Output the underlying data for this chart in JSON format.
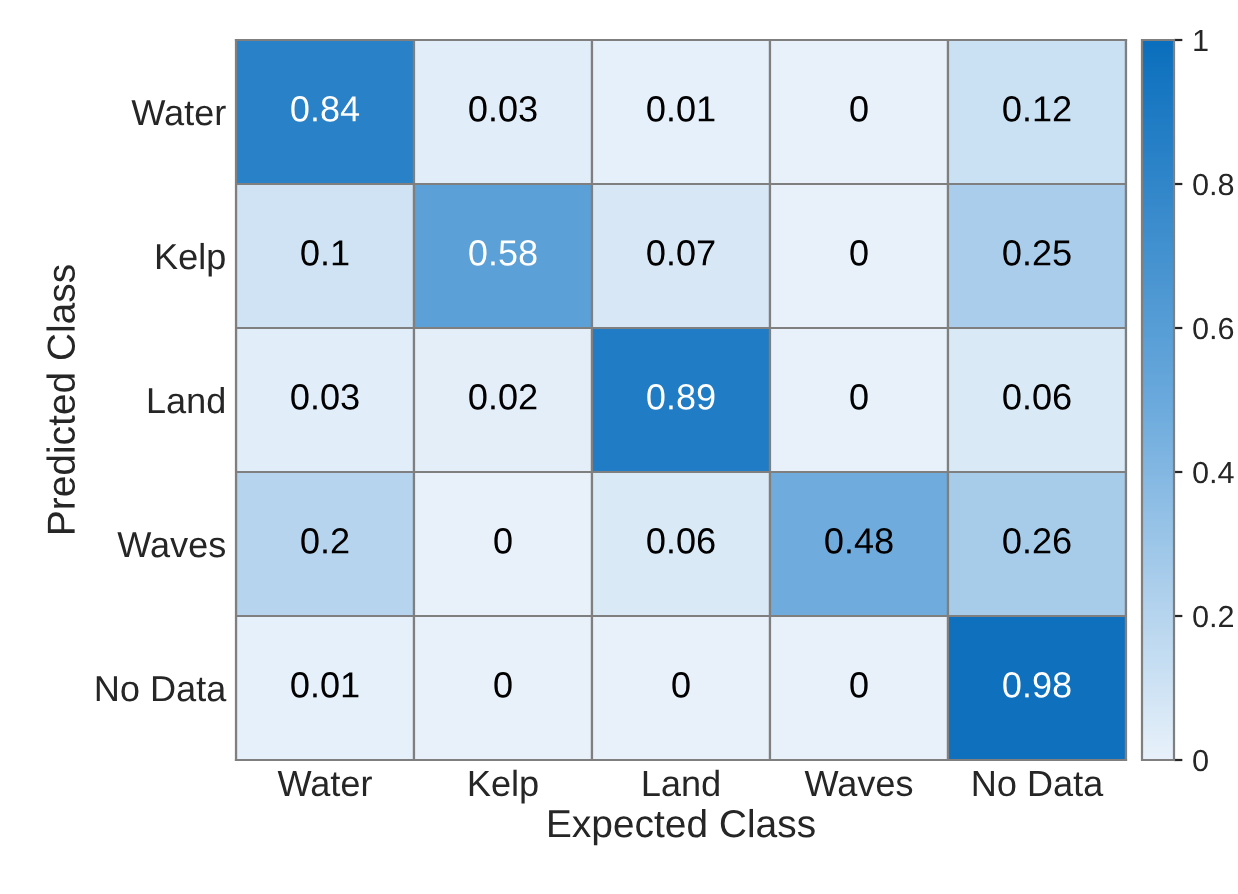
{
  "chart_data": {
    "type": "heatmap",
    "xlabel": "Expected Class",
    "ylabel": "Predicted Class",
    "categories": [
      "Water",
      "Kelp",
      "Land",
      "Waves",
      "No Data"
    ],
    "y_categories": [
      "Water",
      "Kelp",
      "Land",
      "Waves",
      "No Data"
    ],
    "cells": [
      [
        0.84,
        0.03,
        0.01,
        0,
        0.12
      ],
      [
        0.1,
        0.58,
        0.07,
        0,
        0.25
      ],
      [
        0.03,
        0.02,
        0.89,
        0,
        0.06
      ],
      [
        0.2,
        0,
        0.06,
        0.48,
        0.26
      ],
      [
        0.01,
        0,
        0,
        0,
        0.98
      ]
    ],
    "data_labels": true,
    "clim": [
      0,
      1
    ],
    "cticks": [
      0,
      0.2,
      0.4,
      0.6,
      0.8,
      1
    ]
  }
}
